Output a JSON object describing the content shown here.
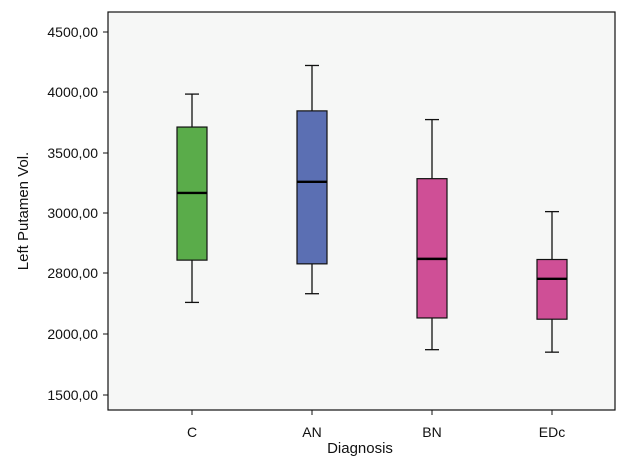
{
  "chart_data": {
    "type": "boxplot",
    "title": "",
    "xlabel": "Diagnosis",
    "ylabel": "Left Putamen Vol.",
    "categories": [
      "C",
      "AN",
      "BN",
      "EDc"
    ],
    "y_tick_labels": [
      "1500,00",
      "2000,00",
      "2800,00",
      "3000,00",
      "3500,00",
      "4000,00",
      "4500,00"
    ],
    "ylim": [
      1450,
      4650
    ],
    "grid": false,
    "legend": "none",
    "boxes": [
      {
        "category": "C",
        "min": 2315,
        "q1": 2655,
        "median": 3195,
        "q3": 3725,
        "max": 3990,
        "color": "#5aac4a"
      },
      {
        "category": "AN",
        "min": 2385,
        "q1": 2625,
        "median": 3285,
        "q3": 3855,
        "max": 4220,
        "color": "#5b6fb3"
      },
      {
        "category": "BN",
        "min": 1935,
        "q1": 2190,
        "median": 2665,
        "q3": 3310,
        "max": 3785,
        "color": "#cf4f96"
      },
      {
        "category": "EDc",
        "min": 1915,
        "q1": 2180,
        "median": 2505,
        "q3": 2660,
        "max": 3045,
        "color": "#cf4f96"
      }
    ]
  }
}
